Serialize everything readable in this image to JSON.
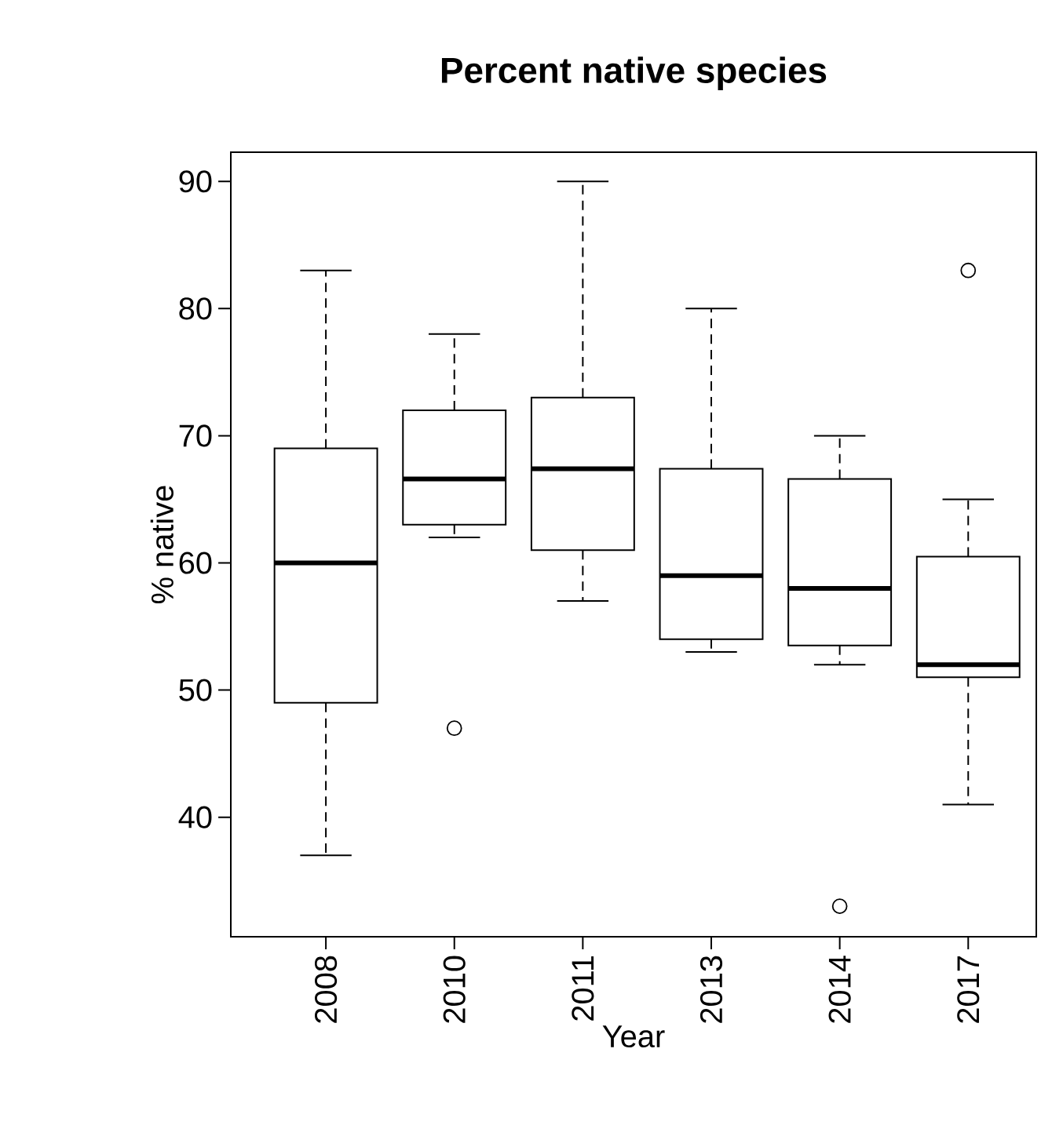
{
  "chart_data": {
    "type": "box",
    "title": "Percent native species",
    "xlabel": "Year",
    "ylabel": "% native",
    "categories": [
      "2008",
      "2010",
      "2011",
      "2013",
      "2014",
      "2017"
    ],
    "boxes": [
      {
        "low": 37,
        "q1": 49,
        "median": 60,
        "q3": 69,
        "high": 83
      },
      {
        "low": 62,
        "q1": 63,
        "median": 66.6,
        "q3": 72,
        "high": 78,
        "outliers": [
          47
        ]
      },
      {
        "low": 57,
        "q1": 61,
        "median": 67.4,
        "q3": 73,
        "high": 90
      },
      {
        "low": 53,
        "q1": 54,
        "median": 59,
        "q3": 67.4,
        "high": 80
      },
      {
        "low": 52,
        "q1": 53.5,
        "median": 58,
        "q3": 66.6,
        "high": 70,
        "outliers": [
          33
        ]
      },
      {
        "low": 41,
        "q1": 51,
        "median": 52,
        "q3": 60.5,
        "high": 65,
        "outliers": [
          83
        ]
      }
    ],
    "ylim": [
      30.6,
      92.3
    ],
    "yticks": [
      40,
      50,
      60,
      70,
      80,
      90
    ]
  }
}
